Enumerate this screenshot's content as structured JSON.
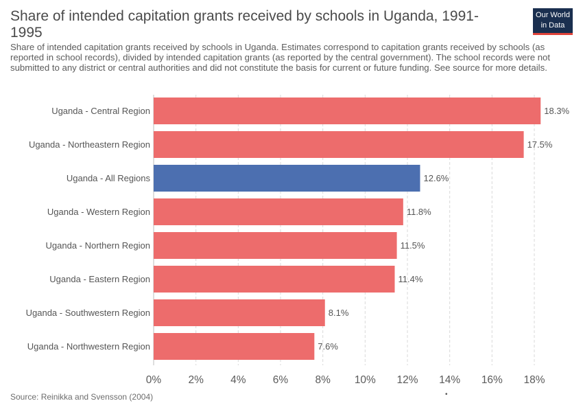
{
  "header": {
    "title": "Share of intended capitation grants received by schools in Uganda, 1991-1995",
    "subtitle": "Share of intended capitation grants received by schools in Uganda. Estimates correspond to capitation grants received by schools (as reported in school records), divided by intended capitation grants (as reported by the central government). The school records were not submitted to any district or central authorities and did not constitute the basis for current or future funding. See source for more details."
  },
  "logo": {
    "line1": "Our World",
    "line2": "in Data"
  },
  "footer": {
    "source": "Source: Reinikka and Svensson (2004)",
    "dot": "•"
  },
  "colors": {
    "regional_bar": "#ed6c6c",
    "highlight_bar": "#4c6fb0",
    "logo_bg": "#1a2f4f",
    "logo_accent": "#e0433a"
  },
  "chart_data": {
    "type": "bar",
    "orientation": "horizontal",
    "categories": [
      "Uganda - Central Region",
      "Uganda - Northeastern Region",
      "Uganda - All Regions",
      "Uganda - Western Region",
      "Uganda - Northern Region",
      "Uganda - Eastern Region",
      "Uganda - Southwestern Region",
      "Uganda - Northwestern Region"
    ],
    "values": [
      18.3,
      17.5,
      12.6,
      11.8,
      11.5,
      11.4,
      8.1,
      7.6
    ],
    "value_labels": [
      "18.3%",
      "17.5%",
      "12.6%",
      "11.8%",
      "11.5%",
      "11.4%",
      "8.1%",
      "7.6%"
    ],
    "highlighted": [
      "Uganda - All Regions"
    ],
    "xlim": [
      0,
      18
    ],
    "x_ticks": [
      0,
      2,
      4,
      6,
      8,
      10,
      12,
      14,
      16,
      18
    ],
    "x_tick_labels": [
      "0%",
      "2%",
      "4%",
      "6%",
      "8%",
      "10%",
      "12%",
      "14%",
      "16%",
      "18%"
    ],
    "grid": "vertical dashed"
  }
}
